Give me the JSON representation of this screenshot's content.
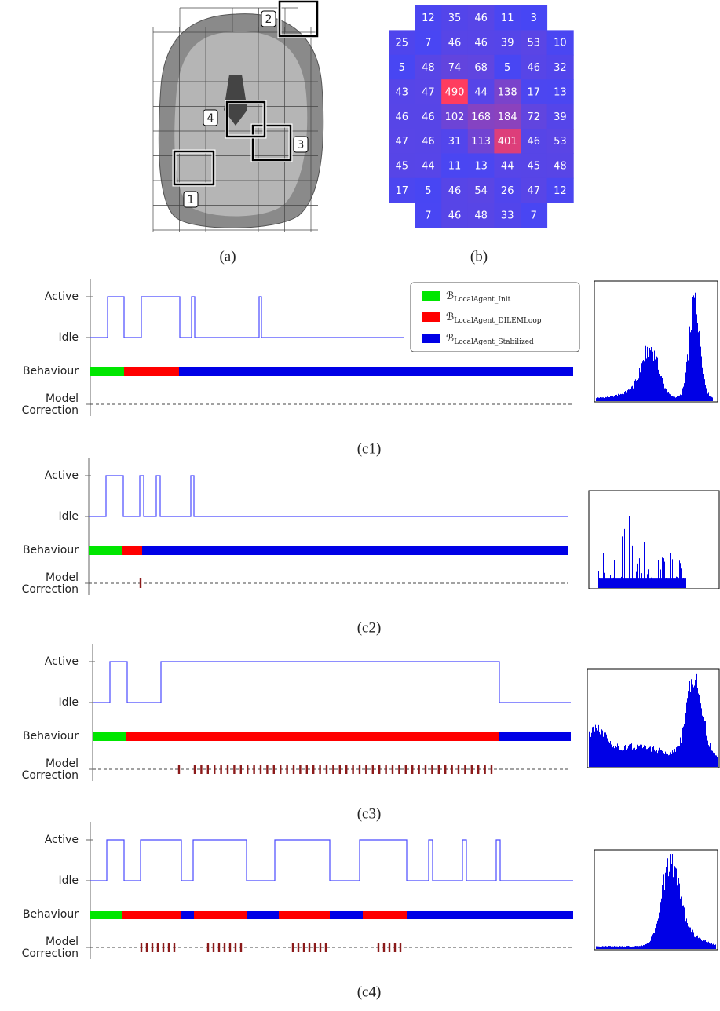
{
  "panel_a": {
    "caption": "(a)",
    "regions": [
      "1",
      "2",
      "3",
      "4"
    ]
  },
  "panel_b": {
    "caption": "(b)",
    "grid": [
      [
        null,
        12,
        35,
        46,
        11,
        3,
        null
      ],
      [
        25,
        7,
        46,
        46,
        39,
        53,
        10
      ],
      [
        5,
        48,
        74,
        68,
        5,
        46,
        32
      ],
      [
        43,
        47,
        490,
        44,
        138,
        17,
        13
      ],
      [
        46,
        46,
        102,
        168,
        184,
        72,
        39
      ],
      [
        47,
        46,
        31,
        113,
        401,
        46,
        53
      ],
      [
        45,
        44,
        11,
        13,
        44,
        45,
        48
      ],
      [
        17,
        5,
        46,
        54,
        26,
        47,
        12
      ],
      [
        null,
        7,
        46,
        48,
        33,
        7,
        null
      ]
    ]
  },
  "legend": [
    {
      "symbol": "ℬ",
      "subscript": "LocalAgent_Init",
      "color": "#00e600"
    },
    {
      "symbol": "ℬ",
      "subscript": "LocalAgent_DILEMLoop",
      "color": "#ff0000"
    },
    {
      "symbol": "ℬ",
      "subscript": "LocalAgent_Stabilized",
      "color": "#0000e6"
    }
  ],
  "timelines": [
    {
      "caption": "(c1)",
      "row_labels": [
        "Active",
        "Idle",
        "Behaviour",
        "Model",
        "Correction"
      ]
    },
    {
      "caption": "(c2)",
      "row_labels": [
        "Active",
        "Idle",
        "Behaviour",
        "Model",
        "Correction"
      ]
    },
    {
      "caption": "(c3)",
      "row_labels": [
        "Active",
        "Idle",
        "Behaviour",
        "Model",
        "Correction"
      ]
    },
    {
      "caption": "(c4)",
      "row_labels": [
        "Active",
        "Idle",
        "Behaviour",
        "Model",
        "Correction"
      ]
    }
  ]
}
